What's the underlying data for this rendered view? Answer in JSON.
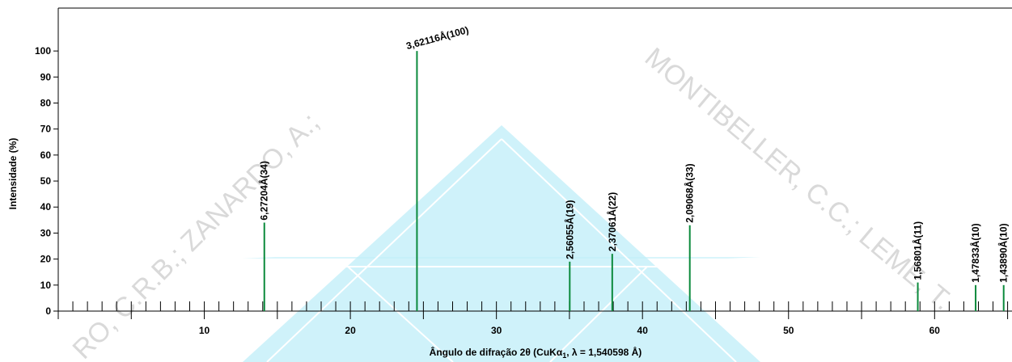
{
  "chart_data": {
    "type": "stick",
    "y_label": "Intensidade (%)",
    "x_label": [
      "Ângulo de difração 2θ (CuKα",
      "1",
      ", λ = 1,540598 Å)"
    ],
    "watermark": [
      "RO, C.R.B.; ZANARDO, A.;",
      "MONTIBELLER, C.C.; LEME, T."
    ],
    "x": [
      14.11,
      24.56,
      35.02,
      37.93,
      43.24,
      58.85,
      62.81,
      64.73
    ],
    "values": [
      34,
      100,
      19,
      22,
      33,
      11,
      10,
      10
    ],
    "labels": [
      "6,27204Å(34)",
      "3,62116Å(100)",
      "2,56055Å(19)",
      "2,37061Å(22)",
      "2,09068Å(33)",
      "1,56801Å(11)",
      "1,47833Å(10)",
      "1,43890Å(10)"
    ],
    "color": "#0b8a3c",
    "xlim": [
      0,
      65.3
    ],
    "ylim": [
      0,
      116.5
    ],
    "xticks": [
      10,
      20,
      30,
      40,
      50,
      60
    ],
    "xminorticks": [
      1,
      2,
      3,
      4,
      5,
      6,
      7,
      8,
      9,
      10,
      11,
      12,
      13,
      14,
      15,
      16,
      17,
      18,
      19,
      20,
      21,
      22,
      23,
      24,
      25,
      26,
      27,
      28,
      29,
      30,
      31,
      32,
      33,
      34,
      35,
      36,
      37,
      38,
      39,
      40,
      41,
      42,
      43,
      44,
      45,
      46,
      47,
      48,
      49,
      50,
      51,
      52,
      53,
      54,
      55,
      56,
      57,
      58,
      59,
      60,
      61,
      62,
      63,
      64,
      65
    ],
    "yticks": [
      0,
      10,
      20,
      30,
      40,
      50,
      60,
      70,
      80,
      90,
      100
    ]
  }
}
